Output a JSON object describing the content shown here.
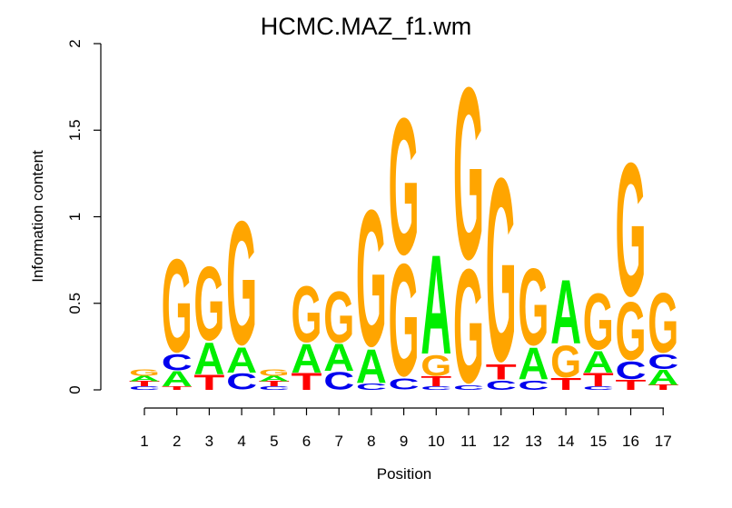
{
  "chart_data": {
    "type": "sequence-logo",
    "title": "HCMC.MAZ_f1.wm",
    "xlabel": "Position",
    "ylabel": "Information content",
    "ylim": [
      0,
      2
    ],
    "yticks": [
      "0",
      "0.5",
      "1",
      "1.5",
      "2"
    ],
    "yticks_values": [
      0,
      0.5,
      1,
      1.5,
      2
    ],
    "positions": [
      "1",
      "2",
      "3",
      "4",
      "5",
      "6",
      "7",
      "8",
      "9",
      "10",
      "11",
      "12",
      "13",
      "14",
      "15",
      "16",
      "17"
    ],
    "colors": {
      "A": "#00ee00",
      "C": "#0000ee",
      "G": "#ffa500",
      "T": "#ff0000"
    },
    "stacks": [
      [
        [
          "C",
          0.02
        ],
        [
          "T",
          0.03
        ],
        [
          "A",
          0.03
        ],
        [
          "G",
          0.04
        ]
      ],
      [
        [
          "T",
          0.02
        ],
        [
          "A",
          0.09
        ],
        [
          "C",
          0.1
        ],
        [
          "G",
          0.58
        ]
      ],
      [
        [
          "T",
          0.09
        ],
        [
          "A",
          0.19
        ],
        [
          "G",
          0.46
        ]
      ],
      [
        [
          "C",
          0.1
        ],
        [
          "A",
          0.15
        ],
        [
          "G",
          0.77
        ]
      ],
      [
        [
          "C",
          0.02
        ],
        [
          "T",
          0.03
        ],
        [
          "A",
          0.03
        ],
        [
          "G",
          0.04
        ]
      ],
      [
        [
          "T",
          0.1
        ],
        [
          "A",
          0.17
        ],
        [
          "G",
          0.35
        ]
      ],
      [
        [
          "C",
          0.11
        ],
        [
          "A",
          0.16
        ],
        [
          "G",
          0.32
        ]
      ],
      [
        [
          "C",
          0.04
        ],
        [
          "A",
          0.2
        ],
        [
          "G",
          0.85
        ]
      ],
      [
        [
          "C",
          0.07
        ],
        [
          "G",
          0.7
        ],
        [
          "G",
          0.85
        ]
      ],
      [
        [
          "C",
          0.02
        ],
        [
          "T",
          0.06
        ],
        [
          "G",
          0.13
        ],
        [
          "A",
          0.59
        ]
      ],
      [
        [
          "C",
          0.03
        ],
        [
          "G",
          0.71
        ],
        [
          "G",
          1.07
        ]
      ],
      [
        [
          "C",
          0.06
        ],
        [
          "T",
          0.09
        ],
        [
          "G",
          1.14
        ]
      ],
      [
        [
          "C",
          0.06
        ],
        [
          "A",
          0.19
        ],
        [
          "G",
          0.48
        ]
      ],
      [
        [
          "T",
          0.07
        ],
        [
          "G",
          0.2
        ],
        [
          "A",
          0.38
        ]
      ],
      [
        [
          "C",
          0.02
        ],
        [
          "T",
          0.08
        ],
        [
          "A",
          0.13
        ],
        [
          "G",
          0.35
        ]
      ],
      [
        [
          "T",
          0.06
        ],
        [
          "C",
          0.11
        ],
        [
          "G",
          0.36
        ],
        [
          "G",
          0.83
        ]
      ],
      [
        [
          "T",
          0.03
        ],
        [
          "A",
          0.09
        ],
        [
          "C",
          0.09
        ],
        [
          "G",
          0.37
        ]
      ]
    ]
  }
}
